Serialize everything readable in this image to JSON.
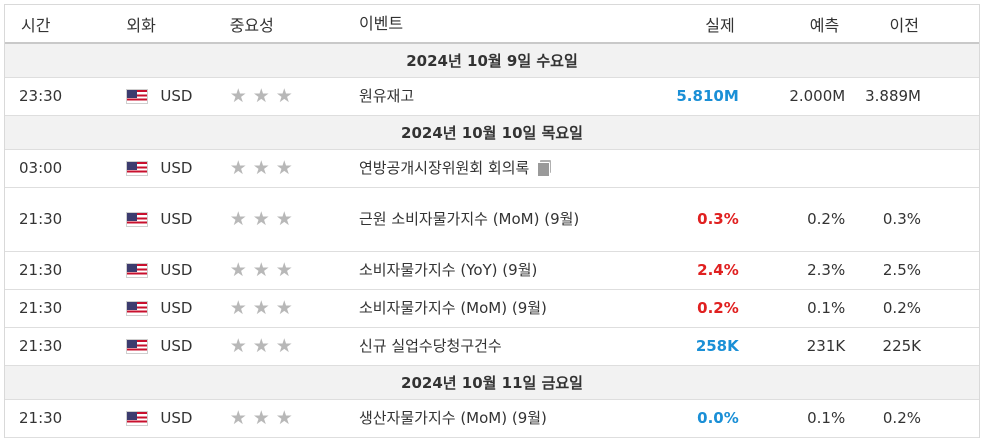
{
  "headers": {
    "time": "시간",
    "currency": "외화",
    "importance": "중요성",
    "event": "이벤트",
    "actual": "실제",
    "forecast": "예측",
    "previous": "이전"
  },
  "colors": {
    "positive": "#1a8fd6",
    "negative": "#e02020",
    "star": "#b8b8b8"
  },
  "days": [
    {
      "label": "2024년 10월 9일 수요일",
      "events": [
        {
          "time": "23:30",
          "currency": "USD",
          "flag": "us-flag-icon",
          "importance": 3,
          "name": "원유재고",
          "actual": "5.810M",
          "actual_status": "pos",
          "forecast": "2.000M",
          "previous": "3.889M"
        }
      ]
    },
    {
      "label": "2024년 10월 10일 목요일",
      "events": [
        {
          "time": "03:00",
          "currency": "USD",
          "flag": "us-flag-icon",
          "importance": 3,
          "name": "연방공개시장위원회 회의록",
          "doc_icon": "document-icon",
          "actual": "",
          "actual_status": "",
          "forecast": "",
          "previous": ""
        },
        {
          "time": "21:30",
          "currency": "USD",
          "flag": "us-flag-icon",
          "importance": 3,
          "name": "근원 소비자물가지수 (MoM) (9월)",
          "actual": "0.3%",
          "actual_status": "neg",
          "forecast": "0.2%",
          "previous": "0.3%",
          "tall": true
        },
        {
          "time": "21:30",
          "currency": "USD",
          "flag": "us-flag-icon",
          "importance": 3,
          "name": "소비자물가지수 (YoY) (9월)",
          "actual": "2.4%",
          "actual_status": "neg",
          "forecast": "2.3%",
          "previous": "2.5%"
        },
        {
          "time": "21:30",
          "currency": "USD",
          "flag": "us-flag-icon",
          "importance": 3,
          "name": "소비자물가지수 (MoM) (9월)",
          "actual": "0.2%",
          "actual_status": "neg",
          "forecast": "0.1%",
          "previous": "0.2%"
        },
        {
          "time": "21:30",
          "currency": "USD",
          "flag": "us-flag-icon",
          "importance": 3,
          "name": "신규 실업수당청구건수",
          "actual": "258K",
          "actual_status": "pos",
          "forecast": "231K",
          "previous": "225K"
        }
      ]
    },
    {
      "label": "2024년 10월 11일 금요일",
      "events": [
        {
          "time": "21:30",
          "currency": "USD",
          "flag": "us-flag-icon",
          "importance": 3,
          "name": "생산자물가지수 (MoM) (9월)",
          "actual": "0.0%",
          "actual_status": "pos",
          "forecast": "0.1%",
          "previous": "0.2%"
        }
      ]
    }
  ]
}
